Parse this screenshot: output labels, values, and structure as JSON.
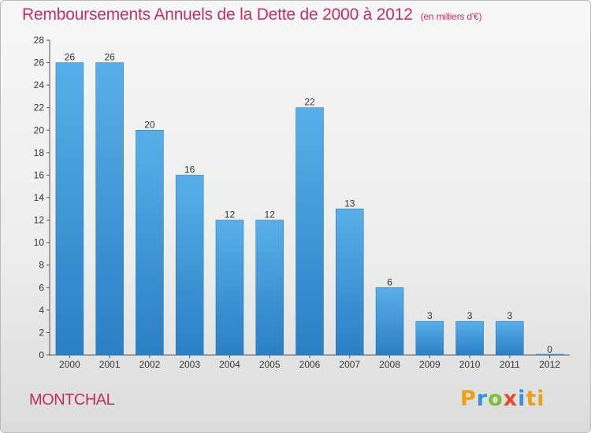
{
  "header": {
    "title": "Remboursements Annuels de la Dette de 2000 à 2012",
    "unit": "(en milliers d'€)"
  },
  "footer": {
    "commune": "MONTCHAL",
    "logo": [
      "P",
      "r",
      "o",
      "x",
      "i",
      "ti"
    ]
  },
  "colors": {
    "title": "#c2305f",
    "bar_top": "#5aaee8",
    "bar_bottom": "#2b7fc4"
  },
  "chart_data": {
    "type": "bar",
    "categories": [
      "2000",
      "2001",
      "2002",
      "2003",
      "2004",
      "2005",
      "2006",
      "2007",
      "2008",
      "2009",
      "2010",
      "2011",
      "2012"
    ],
    "values": [
      26,
      26,
      20,
      16,
      12,
      12,
      22,
      13,
      6,
      3,
      3,
      3,
      0
    ],
    "title": "Remboursements Annuels de la Dette de 2000 à 2012",
    "xlabel": "",
    "ylabel": "",
    "ylim": [
      0,
      28
    ],
    "yticks": [
      0,
      2,
      4,
      6,
      8,
      10,
      12,
      14,
      16,
      18,
      20,
      22,
      24,
      26,
      28
    ],
    "grid": false,
    "legend": "none",
    "data_labels": true
  }
}
